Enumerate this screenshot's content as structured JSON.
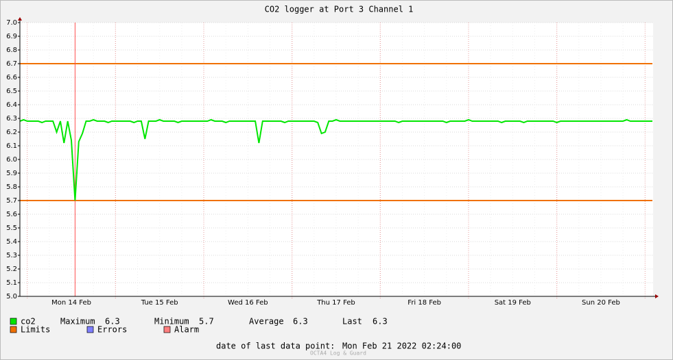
{
  "chart_data": {
    "type": "line",
    "title": "CO2 logger at Port 3 Channel 1",
    "categories": [
      null,
      null,
      null,
      null,
      null,
      null,
      null,
      null,
      null,
      null,
      null,
      null,
      null,
      null,
      "Mon 14 Feb",
      null,
      null,
      null,
      null,
      null,
      null,
      null,
      null,
      null,
      null,
      null,
      null,
      null,
      null,
      null,
      null,
      null,
      null,
      null,
      null,
      null,
      null,
      null,
      "Tue 15 Feb",
      null,
      null,
      null,
      null,
      null,
      null,
      null,
      null,
      null,
      null,
      null,
      null,
      null,
      null,
      null,
      null,
      null,
      null,
      null,
      null,
      null,
      null,
      null,
      "Wed 16 Feb",
      null,
      null,
      null,
      null,
      null,
      null,
      null,
      null,
      null,
      null,
      null,
      null,
      null,
      null,
      null,
      null,
      null,
      null,
      null,
      null,
      null,
      null,
      null,
      "Thu 17 Feb",
      null,
      null,
      null,
      null,
      null,
      null,
      null,
      null,
      null,
      null,
      null,
      null,
      null,
      null,
      null,
      null,
      null,
      null,
      null,
      null,
      null,
      null,
      null,
      "Fri 18 Feb",
      null,
      null,
      null,
      null,
      null,
      null,
      null,
      null,
      null,
      null,
      null,
      null,
      null,
      null,
      null,
      null,
      null,
      null,
      null,
      null,
      null,
      null,
      null,
      "Sat 19 Feb",
      null,
      null,
      null,
      null,
      null,
      null,
      null,
      null,
      null,
      null,
      null,
      null,
      null,
      null,
      null,
      null,
      null,
      null,
      null,
      null,
      null,
      null,
      null,
      "Sun 20 Feb",
      null,
      null,
      null,
      null,
      null,
      null,
      null,
      null,
      null,
      null,
      null,
      null,
      null,
      null
    ],
    "series": [
      {
        "name": "co2",
        "color": "#00e600",
        "stats": [
          {
            "label": "Maximum",
            "value": 6.3
          },
          {
            "label": "Minimum",
            "value": 5.7
          },
          {
            "label": "Average",
            "value": 6.3
          },
          {
            "label": "Last",
            "value": 6.3
          }
        ],
        "values": [
          6.28,
          6.29,
          6.28,
          6.28,
          6.28,
          6.28,
          6.27,
          6.28,
          6.28,
          6.28,
          6.2,
          6.28,
          6.12,
          6.28,
          6.14,
          5.7,
          6.13,
          6.19,
          6.28,
          6.28,
          6.29,
          6.28,
          6.28,
          6.28,
          6.27,
          6.28,
          6.28,
          6.28,
          6.28,
          6.28,
          6.28,
          6.27,
          6.28,
          6.28,
          6.15,
          6.28,
          6.28,
          6.28,
          6.29,
          6.28,
          6.28,
          6.28,
          6.28,
          6.27,
          6.28,
          6.28,
          6.28,
          6.28,
          6.28,
          6.28,
          6.28,
          6.28,
          6.29,
          6.28,
          6.28,
          6.28,
          6.27,
          6.28,
          6.28,
          6.28,
          6.28,
          6.28,
          6.28,
          6.28,
          6.28,
          6.12,
          6.28,
          6.28,
          6.28,
          6.28,
          6.28,
          6.28,
          6.27,
          6.28,
          6.28,
          6.28,
          6.28,
          6.28,
          6.28,
          6.28,
          6.28,
          6.27,
          6.19,
          6.2,
          6.28,
          6.28,
          6.29,
          6.28,
          6.28,
          6.28,
          6.28,
          6.28,
          6.28,
          6.28,
          6.28,
          6.28,
          6.28,
          6.28,
          6.28,
          6.28,
          6.28,
          6.28,
          6.28,
          6.27,
          6.28,
          6.28,
          6.28,
          6.28,
          6.28,
          6.28,
          6.28,
          6.28,
          6.28,
          6.28,
          6.28,
          6.28,
          6.27,
          6.28,
          6.28,
          6.28,
          6.28,
          6.28,
          6.29,
          6.28,
          6.28,
          6.28,
          6.28,
          6.28,
          6.28,
          6.28,
          6.28,
          6.27,
          6.28,
          6.28,
          6.28,
          6.28,
          6.28,
          6.27,
          6.28,
          6.28,
          6.28,
          6.28,
          6.28,
          6.28,
          6.28,
          6.28,
          6.27,
          6.28,
          6.28,
          6.28,
          6.28,
          6.28,
          6.28,
          6.28,
          6.28,
          6.28,
          6.28,
          6.28,
          6.28,
          6.28,
          6.28,
          6.28,
          6.28,
          6.28,
          6.28,
          6.29,
          6.28,
          6.28,
          6.28,
          6.28,
          6.28,
          6.28,
          6.28
        ]
      }
    ],
    "limits": {
      "name": "Limits",
      "color": "#f07000",
      "values": [
        5.7,
        6.7
      ]
    },
    "errors": {
      "name": "Errors",
      "color": "#7f7fff"
    },
    "alarm": {
      "name": "Alarm",
      "color": "#ff7f7f"
    },
    "ylim": [
      5,
      7
    ],
    "yticks": [
      {
        "value": 5,
        "label": "5.0"
      },
      5.1,
      5.2,
      5.3,
      5.4,
      5.5,
      5.6,
      5.7,
      5.8,
      5.9,
      {
        "value": 6,
        "label": "6.0"
      },
      6.1,
      6.2,
      6.3,
      6.4,
      6.5,
      6.6,
      6.7,
      6.8,
      6.9,
      {
        "value": 7,
        "label": "7.0"
      }
    ],
    "grid": true,
    "footer": {
      "label": "date of last data point:",
      "value": "Mon Feb 21 2022 02:24:00"
    },
    "watermark": "OCTA4 Log & Guard"
  }
}
